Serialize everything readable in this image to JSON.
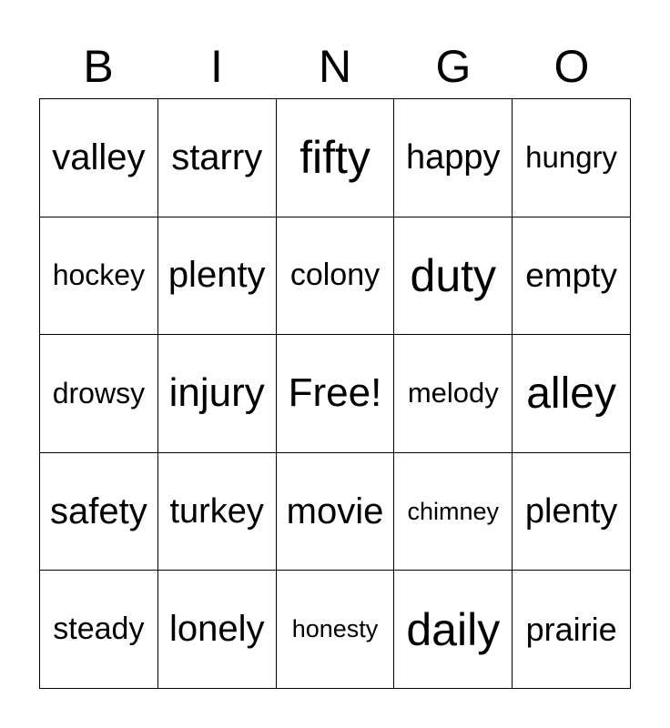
{
  "header": [
    "B",
    "I",
    "N",
    "G",
    "O"
  ],
  "cells": [
    "valley",
    "starry",
    "fifty",
    "happy",
    "hungry",
    "hockey",
    "plenty",
    "colony",
    "duty",
    "empty",
    "drowsy",
    "injury",
    "Free!",
    "melody",
    "alley",
    "safety",
    "turkey",
    "movie",
    "chimney",
    "plenty",
    "steady",
    "lonely",
    "honesty",
    "daily",
    "prairie"
  ]
}
